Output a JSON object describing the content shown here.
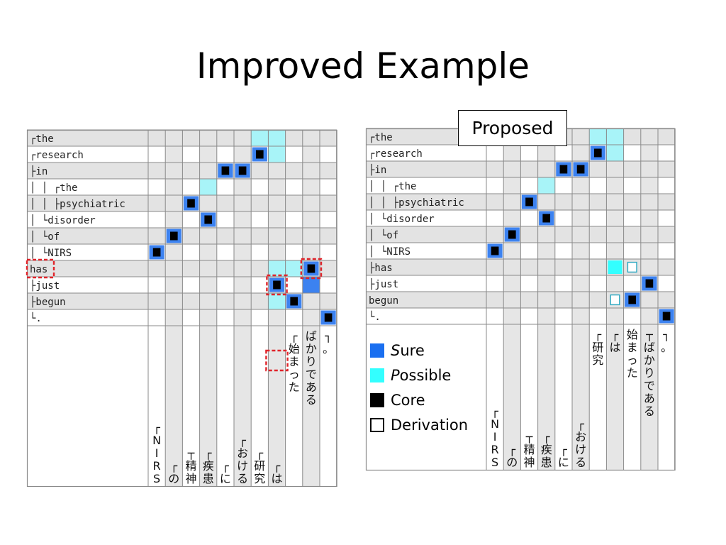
{
  "title": "Improved Example",
  "proposed_label": "Proposed",
  "colors": {
    "sure": "#1a6ff0",
    "possible": "#33ffff",
    "core": "#000000",
    "derivation_border": "#000000",
    "grid_line": "#8a8a8a",
    "row_shade": "#e3e3e3",
    "possible_cell": "#a8f4f8",
    "sure_cell": "#3c82f0",
    "highlight_box": "#e0242a"
  },
  "legend": [
    {
      "key": "sure",
      "first": "S",
      "rest": "ure",
      "color": "#1a6ff0",
      "style": "filled"
    },
    {
      "key": "possible",
      "first": "P",
      "rest": "ossible",
      "color": "#33ffff",
      "style": "filled"
    },
    {
      "key": "core",
      "first": "",
      "rest": "Core",
      "color": "#000000",
      "style": "filled"
    },
    {
      "key": "derivation",
      "first": "",
      "rest": "Derivation",
      "color": "#ffffff",
      "style": "outline"
    }
  ],
  "source_tokens": [
    "the",
    "research",
    "in",
    "the",
    "psychiatric",
    "disorder",
    "of",
    "NIRS",
    "has",
    "just",
    "begun",
    "."
  ],
  "target_tokens": [
    "NIRS",
    "の",
    "精神",
    "疾患",
    "に",
    "おける",
    "研究",
    "は",
    "始まった",
    "ばかりである",
    "。"
  ],
  "left_grid": {
    "row_labels": [
      "┌the",
      "┌research",
      "├in",
      "│ │ ┌the",
      "│ │ ├psychiatric",
      "│ └disorder",
      "│  └of",
      "│    └NIRS",
      "has",
      "├just",
      "├begun",
      "└."
    ],
    "col_labels": [
      "┌NIRS",
      "┌の",
      "┬精神",
      "┌疾患",
      "┌に",
      "┌おける",
      "┌研究",
      "┌は",
      "┌始まった",
      "ばかりである",
      "┐。"
    ],
    "cells": [
      {
        "r": 0,
        "c": 6,
        "k": "possible"
      },
      {
        "r": 0,
        "c": 7,
        "k": "possible"
      },
      {
        "r": 1,
        "c": 6,
        "k": "core"
      },
      {
        "r": 1,
        "c": 7,
        "k": "possible"
      },
      {
        "r": 2,
        "c": 4,
        "k": "core"
      },
      {
        "r": 2,
        "c": 5,
        "k": "core"
      },
      {
        "r": 3,
        "c": 3,
        "k": "possible"
      },
      {
        "r": 4,
        "c": 2,
        "k": "core"
      },
      {
        "r": 5,
        "c": 3,
        "k": "core"
      },
      {
        "r": 6,
        "c": 1,
        "k": "core"
      },
      {
        "r": 7,
        "c": 0,
        "k": "core"
      },
      {
        "r": 8,
        "c": 7,
        "k": "possible"
      },
      {
        "r": 8,
        "c": 8,
        "k": "possible"
      },
      {
        "r": 8,
        "c": 9,
        "k": "core"
      },
      {
        "r": 9,
        "c": 7,
        "k": "core"
      },
      {
        "r": 9,
        "c": 9,
        "k": "sure"
      },
      {
        "r": 10,
        "c": 7,
        "k": "possible"
      },
      {
        "r": 10,
        "c": 8,
        "k": "core"
      },
      {
        "r": 11,
        "c": 10,
        "k": "core"
      }
    ],
    "highlight_cells": [
      {
        "r": 8,
        "c": 9
      },
      {
        "r": 9,
        "c": 7
      }
    ],
    "highlight_row_label": 8,
    "highlight_col_label": 7
  },
  "right_grid": {
    "row_labels": [
      "┌the",
      "┌research",
      "├in",
      "│ │ ┌the",
      "│ │ ├psychiatric",
      "│ └disorder",
      "│  └of",
      "│    └NIRS",
      "├has",
      "├just",
      "begun",
      "└."
    ],
    "col_labels": [
      "┌NIRS",
      "┌の",
      "┬精神",
      "┌疾患",
      "┌に",
      "┌おける",
      "┌研究",
      "┌は",
      "始まった",
      "┬ばかりである",
      "┐。"
    ],
    "cells": [
      {
        "r": 0,
        "c": 6,
        "k": "possible"
      },
      {
        "r": 0,
        "c": 7,
        "k": "possible"
      },
      {
        "r": 1,
        "c": 6,
        "k": "core"
      },
      {
        "r": 1,
        "c": 7,
        "k": "possible"
      },
      {
        "r": 2,
        "c": 4,
        "k": "core"
      },
      {
        "r": 2,
        "c": 5,
        "k": "core"
      },
      {
        "r": 3,
        "c": 3,
        "k": "possible"
      },
      {
        "r": 4,
        "c": 2,
        "k": "core"
      },
      {
        "r": 5,
        "c": 3,
        "k": "core"
      },
      {
        "r": 6,
        "c": 1,
        "k": "core"
      },
      {
        "r": 7,
        "c": 0,
        "k": "core"
      },
      {
        "r": 8,
        "c": 7,
        "k": "possible_deriv"
      },
      {
        "r": 8,
        "c": 8,
        "k": "deriv_cyan"
      },
      {
        "r": 9,
        "c": 9,
        "k": "core"
      },
      {
        "r": 10,
        "c": 7,
        "k": "deriv_cyan"
      },
      {
        "r": 10,
        "c": 8,
        "k": "core"
      },
      {
        "r": 11,
        "c": 10,
        "k": "core"
      }
    ],
    "highlight_cells": [],
    "highlight_row_label": -1,
    "highlight_col_label": -1
  }
}
